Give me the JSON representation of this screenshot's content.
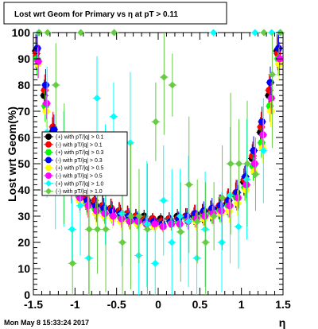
{
  "footer_text": "Mon May  8 15:33:24 2017",
  "chart_data": {
    "type": "scatter",
    "title": "Lost wrt Geom for Primary vs  η at pT > 0.11",
    "xlabel": "η",
    "ylabel": "Lost wrt Geom(%)",
    "xlim": [
      -1.5,
      1.5
    ],
    "ylim": [
      0,
      100
    ],
    "x_ticks": [
      "-1.5",
      "-1",
      "-0.5",
      "0",
      "0.5",
      "1",
      "1.5"
    ],
    "y_ticks": [
      "0",
      "10",
      "20",
      "30",
      "40",
      "50",
      "60",
      "70",
      "80",
      "90",
      "100"
    ],
    "grid": false,
    "legend_position": "left-middle",
    "series": [
      {
        "name": "(+) with pT/|q| > 0.1",
        "color": "#000000",
        "marker": "circle",
        "x": [
          -1.45,
          -1.35,
          -1.25,
          -1.15,
          -1.05,
          -0.95,
          -0.85,
          -0.75,
          -0.65,
          -0.55,
          -0.45,
          -0.35,
          -0.25,
          -0.15,
          -0.05,
          0.05,
          0.15,
          0.25,
          0.35,
          0.45,
          0.55,
          0.65,
          0.75,
          0.85,
          0.95,
          1.05,
          1.15,
          1.25,
          1.35,
          1.45
        ],
        "y": [
          93,
          76,
          62,
          52,
          45,
          40,
          37,
          35,
          34,
          33,
          32,
          31,
          30,
          30,
          29,
          29,
          29,
          30,
          30,
          30,
          31,
          32,
          33,
          35,
          38,
          43,
          52,
          62,
          76,
          93
        ]
      },
      {
        "name": "(-) with pT/|q| > 0.1",
        "color": "#ff0000",
        "marker": "circle",
        "x": [
          -1.45,
          -1.35,
          -1.25,
          -1.15,
          -1.05,
          -0.95,
          -0.85,
          -0.75,
          -0.65,
          -0.55,
          -0.45,
          -0.35,
          -0.25,
          -0.15,
          -0.05,
          0.05,
          0.15,
          0.25,
          0.35,
          0.45,
          0.55,
          0.65,
          0.75,
          0.85,
          0.95,
          1.05,
          1.15,
          1.25,
          1.35,
          1.45
        ],
        "y": [
          92,
          78,
          64,
          53,
          46,
          41,
          38,
          36,
          34,
          33,
          32,
          31,
          30,
          29,
          29,
          28,
          29,
          29,
          30,
          31,
          31,
          32,
          34,
          36,
          39,
          44,
          53,
          64,
          78,
          92
        ]
      },
      {
        "name": "(+) with pT/|q| > 0.3",
        "color": "#00ff00",
        "marker": "circle",
        "x": [
          -1.45,
          -1.35,
          -1.25,
          -1.15,
          -1.05,
          -0.95,
          -0.85,
          -0.75,
          -0.65,
          -0.55,
          -0.45,
          -0.35,
          -0.25,
          -0.15,
          -0.05,
          0.05,
          0.15,
          0.25,
          0.35,
          0.45,
          0.55,
          0.65,
          0.75,
          0.85,
          0.95,
          1.05,
          1.15,
          1.25,
          1.35,
          1.45
        ],
        "y": [
          90,
          72,
          58,
          49,
          43,
          38,
          35,
          33,
          32,
          31,
          30,
          29,
          28,
          28,
          27,
          27,
          28,
          28,
          29,
          29,
          30,
          31,
          32,
          34,
          37,
          41,
          49,
          58,
          72,
          90
        ]
      },
      {
        "name": "(-) with pT/|q| > 0.3",
        "color": "#0000ff",
        "marker": "circle",
        "x": [
          -1.45,
          -1.35,
          -1.25,
          -1.15,
          -1.05,
          -0.95,
          -0.85,
          -0.75,
          -0.65,
          -0.55,
          -0.45,
          -0.35,
          -0.25,
          -0.15,
          -0.05,
          0.05,
          0.15,
          0.25,
          0.35,
          0.45,
          0.55,
          0.65,
          0.75,
          0.85,
          0.95,
          1.05,
          1.15,
          1.25,
          1.35,
          1.45
        ],
        "y": [
          94,
          80,
          63,
          52,
          44,
          39,
          36,
          34,
          33,
          32,
          31,
          30,
          29,
          28,
          28,
          27,
          28,
          29,
          30,
          31,
          32,
          33,
          34,
          36,
          39,
          45,
          55,
          66,
          81,
          94
        ]
      },
      {
        "name": "(+) with pT/|q| > 0.5",
        "color": "#ffff00",
        "marker": "circle",
        "x": [
          -1.45,
          -1.35,
          -1.25,
          -1.15,
          -1.05,
          -0.95,
          -0.85,
          -0.75,
          -0.65,
          -0.55,
          -0.45,
          -0.35,
          -0.25,
          -0.15,
          -0.05,
          0.05,
          0.15,
          0.25,
          0.35,
          0.45,
          0.55,
          0.65,
          0.75,
          0.85,
          0.95,
          1.05,
          1.15,
          1.25,
          1.35,
          1.45
        ],
        "y": [
          88,
          70,
          55,
          47,
          41,
          36,
          34,
          31,
          30,
          29,
          28,
          28,
          27,
          27,
          26,
          26,
          27,
          27,
          28,
          28,
          29,
          30,
          31,
          32,
          35,
          40,
          47,
          56,
          70,
          88
        ]
      },
      {
        "name": "(-) with pT/|q| > 0.5",
        "color": "#ff00ff",
        "marker": "circle",
        "x": [
          -1.45,
          -1.35,
          -1.25,
          -1.15,
          -1.05,
          -0.95,
          -0.85,
          -0.75,
          -0.65,
          -0.55,
          -0.45,
          -0.35,
          -0.25,
          -0.15,
          -0.05,
          0.05,
          0.15,
          0.25,
          0.35,
          0.45,
          0.55,
          0.65,
          0.75,
          0.85,
          0.95,
          1.05,
          1.15,
          1.25,
          1.35,
          1.45
        ],
        "y": [
          89,
          73,
          56,
          46,
          40,
          37,
          34,
          32,
          31,
          30,
          29,
          28,
          28,
          27,
          27,
          26,
          27,
          27,
          28,
          29,
          30,
          31,
          32,
          34,
          37,
          42,
          50,
          61,
          75,
          90
        ]
      },
      {
        "name": "(+) with pT/|q| > 1.0",
        "color": "#00ffff",
        "marker": "diamond",
        "x": [
          -1.45,
          -1.35,
          -1.25,
          -1.15,
          -1.05,
          -0.95,
          -0.85,
          -0.75,
          -0.65,
          -0.55,
          -0.45,
          -0.35,
          -0.25,
          -0.15,
          -0.05,
          0.05,
          0.15,
          0.25,
          0.35,
          0.45,
          0.55,
          0.65,
          0.75,
          0.85,
          0.95,
          1.05,
          1.15,
          1.25,
          1.35,
          1.45
        ],
        "y": [
          100,
          62,
          40,
          48,
          25,
          34,
          14,
          75,
          42,
          68,
          31,
          58,
          15,
          27,
          12,
          36,
          20,
          30,
          28,
          14,
          25,
          100,
          20,
          38,
          26,
          44,
          100,
          55,
          100,
          100
        ]
      },
      {
        "name": "(-) with pT/|q| > 1.0",
        "color": "#66cc44",
        "marker": "diamond",
        "x": [
          -1.45,
          -1.35,
          -1.25,
          -1.15,
          -1.05,
          -0.95,
          -0.85,
          -0.75,
          -0.65,
          -0.55,
          -0.45,
          -0.35,
          -0.25,
          -0.15,
          -0.05,
          0.05,
          0.15,
          0.25,
          0.35,
          0.45,
          0.55,
          0.65,
          0.75,
          0.85,
          0.95,
          1.05,
          1.15,
          1.25,
          1.35,
          1.45
        ],
        "y": [
          100,
          100,
          80,
          50,
          12,
          100,
          25,
          25,
          25,
          100,
          20,
          30,
          30,
          25,
          66,
          83,
          80,
          24,
          42,
          28,
          20,
          30,
          37,
          50,
          50,
          50,
          46,
          100,
          84,
          100
        ]
      }
    ]
  }
}
